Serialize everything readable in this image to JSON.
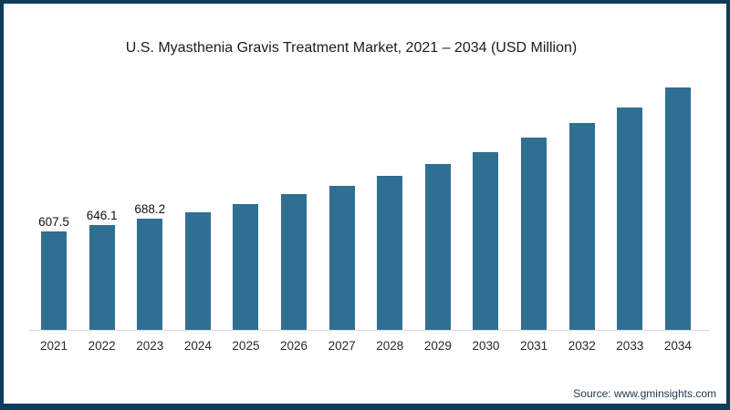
{
  "chart_data": {
    "type": "bar",
    "title": "U.S. Myasthenia Gravis Treatment Market, 2021 – 2034 (USD Million)",
    "xlabel": "",
    "ylabel": "",
    "ylim": [
      0,
      1600
    ],
    "grid": false,
    "legend": false,
    "categories": [
      "2021",
      "2022",
      "2023",
      "2024",
      "2025",
      "2026",
      "2027",
      "2028",
      "2029",
      "2030",
      "2031",
      "2032",
      "2033",
      "2034"
    ],
    "values": [
      607.5,
      646.1,
      688.2,
      727,
      778,
      838,
      891,
      952,
      1025,
      1100,
      1189,
      1280,
      1376,
      1499
    ],
    "data_labels": [
      "607.5",
      "646.1",
      "688.2",
      "",
      "",
      "",
      "",
      "",
      "",
      "",
      "",
      "",
      "",
      ""
    ]
  },
  "source": {
    "label": "Source: www.gminsights.com"
  },
  "colors": {
    "bar": "#2f6f91",
    "frame_border": "#0f3c57",
    "axis_line": "#d7d7d7"
  }
}
